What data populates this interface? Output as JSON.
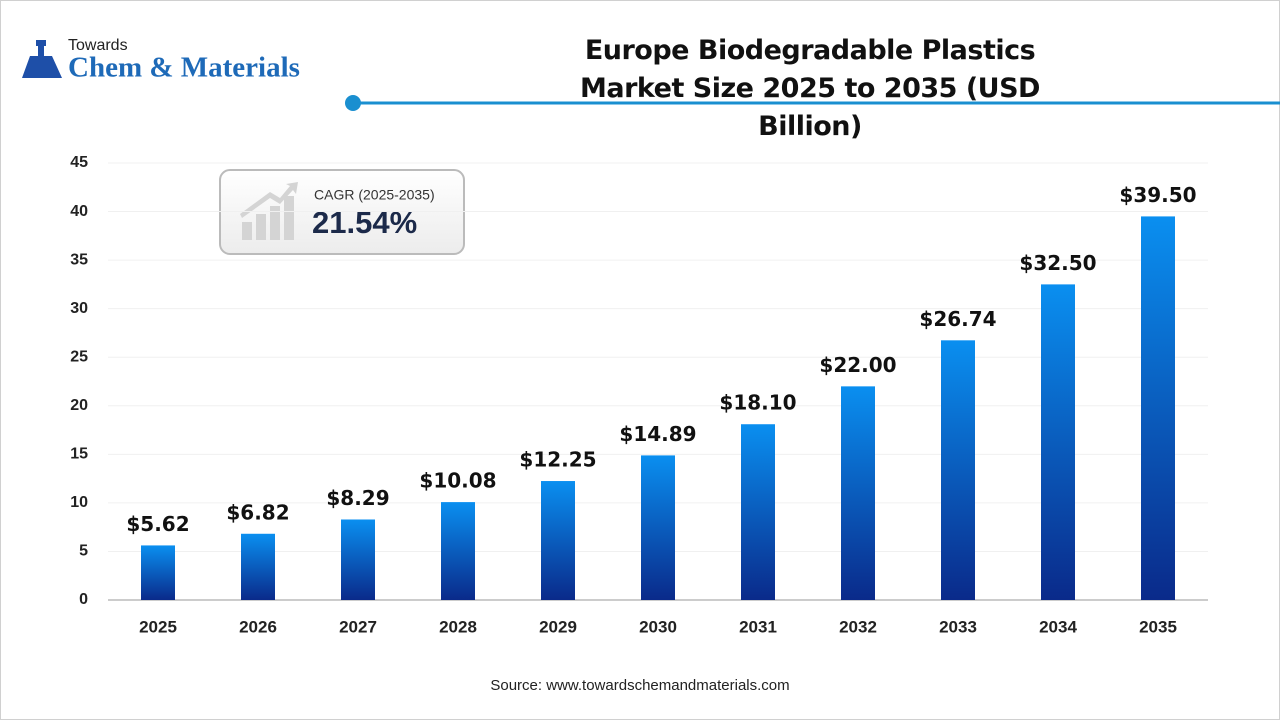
{
  "logo": {
    "top": "Towards",
    "bottom": "Chem & Materials"
  },
  "cagr": {
    "label": "CAGR (2025-2035)",
    "value": "21.54%"
  },
  "source": "Source: www.towardschemandmaterials.com",
  "chart_data": {
    "type": "bar",
    "title": "Europe Biodegradable Plastics Market Size 2025 to 2035 (USD Billion)",
    "categories": [
      "2025",
      "2026",
      "2027",
      "2028",
      "2029",
      "2030",
      "2031",
      "2032",
      "2033",
      "2034",
      "2035"
    ],
    "values": [
      5.62,
      6.82,
      8.29,
      10.08,
      12.25,
      14.89,
      18.1,
      22,
      26.74,
      32.5,
      39.5
    ],
    "value_labels": [
      "$5.62",
      "$6.82",
      "$8.29",
      "$10.08",
      "$12.25",
      "$14.89",
      "$18.10",
      "$22.00",
      "$26.74",
      "$32.50",
      "$39.50"
    ],
    "color": [
      "#0a8ff0",
      "#0a2a8a"
    ],
    "ylim": [
      0,
      45
    ],
    "yticks": [
      0,
      5,
      10,
      15,
      20,
      25,
      30,
      35,
      40,
      45
    ],
    "grid": true
  }
}
